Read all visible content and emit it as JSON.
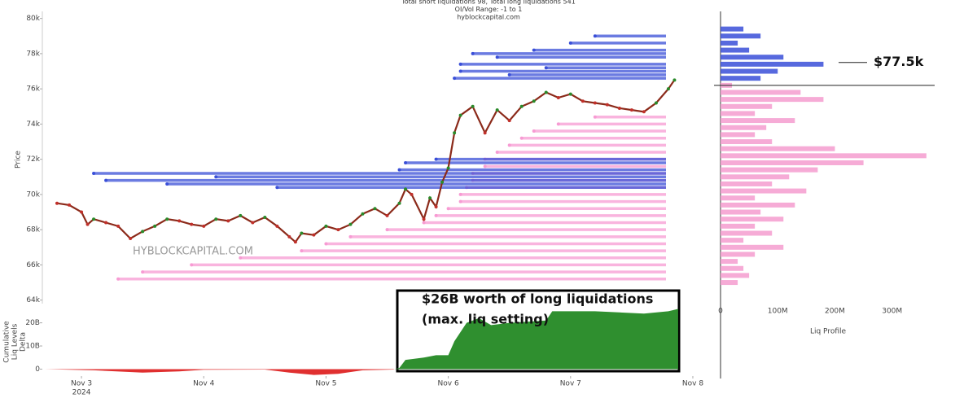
{
  "chart_data": [
    {
      "type": "line",
      "title_lines": [
        "Total short liquidations 98, Total long liquidations 541",
        "OI/Vol Range: -1 to 1",
        "hyblockcapital.com"
      ],
      "ylabel": "Price",
      "watermark": "HYBLOCKCAPITAL.COM",
      "color": "#8b2a1a",
      "x": [
        2.8,
        2.9,
        3.0,
        3.05,
        3.1,
        3.2,
        3.3,
        3.4,
        3.5,
        3.6,
        3.7,
        3.8,
        3.9,
        4.0,
        4.1,
        4.2,
        4.3,
        4.4,
        4.5,
        4.6,
        4.7,
        4.75,
        4.8,
        4.9,
        5.0,
        5.1,
        5.2,
        5.3,
        5.4,
        5.5,
        5.6,
        5.65,
        5.7,
        5.8,
        5.85,
        5.9,
        5.95,
        6.0,
        6.05,
        6.1,
        6.2,
        6.3,
        6.4,
        6.5,
        6.6,
        6.7,
        6.8,
        6.9,
        7.0,
        7.1,
        7.2,
        7.3,
        7.4,
        7.5,
        7.6,
        7.7,
        7.8,
        7.85
      ],
      "values": [
        69500,
        69400,
        69000,
        68300,
        68600,
        68400,
        68200,
        67500,
        67900,
        68200,
        68600,
        68500,
        68300,
        68200,
        68600,
        68500,
        68800,
        68400,
        68700,
        68200,
        67600,
        67300,
        67800,
        67700,
        68200,
        68000,
        68300,
        68900,
        69200,
        68800,
        69500,
        70300,
        70000,
        68600,
        69800,
        69300,
        70700,
        71500,
        73500,
        74500,
        75000,
        73500,
        74800,
        74200,
        75000,
        75300,
        75800,
        75500,
        75700,
        75300,
        75200,
        75100,
        74900,
        74800,
        74700,
        75200,
        76000,
        76500
      ],
      "xlim": [
        2.68,
        8.16
      ],
      "ylim": [
        63800,
        80400
      ],
      "yticks": [
        {
          "value": 64000,
          "label": "64k"
        },
        {
          "value": 66000,
          "label": "66k"
        },
        {
          "value": 68000,
          "label": "68k"
        },
        {
          "value": 70000,
          "label": "70k"
        },
        {
          "value": 72000,
          "label": "72k"
        },
        {
          "value": 74000,
          "label": "74k"
        },
        {
          "value": 76000,
          "label": "76k"
        },
        {
          "value": 78000,
          "label": "78k"
        },
        {
          "value": 80000,
          "label": "80k"
        }
      ],
      "short_levels": {
        "color": "#3a4fd8",
        "prices": [
          71200,
          70800,
          70600,
          71000,
          70400,
          71400,
          71800,
          72000,
          76600,
          77000,
          77400,
          77800,
          78200,
          78600,
          79000,
          76800,
          77200,
          78000
        ],
        "starts": [
          3.1,
          3.2,
          3.7,
          4.1,
          4.6,
          5.6,
          5.65,
          5.9,
          6.05,
          6.1,
          6.1,
          6.4,
          6.7,
          7.0,
          7.2,
          6.5,
          6.8,
          6.2
        ]
      },
      "long_levels": {
        "color": "#f79bd3",
        "prices": [
          65200,
          65600,
          66000,
          66400,
          66800,
          67200,
          67600,
          68000,
          68400,
          68800,
          69200,
          69600,
          70000,
          70400,
          70800,
          71200,
          71600,
          72000,
          72400,
          72800,
          73200,
          73600,
          74000,
          74400
        ],
        "starts": [
          3.3,
          3.5,
          3.9,
          4.3,
          4.8,
          5.0,
          5.2,
          5.5,
          5.8,
          5.9,
          6.0,
          6.1,
          6.1,
          6.15,
          6.2,
          6.2,
          6.3,
          6.3,
          6.4,
          6.5,
          6.6,
          6.7,
          6.9,
          7.2
        ]
      }
    },
    {
      "type": "area",
      "ylabel_lines": [
        "Cumulative",
        "Liq Levels",
        "Delta"
      ],
      "color_positive": "#2f8f2f",
      "color_negative": "#e03030",
      "x": [
        2.7,
        3.1,
        3.5,
        3.8,
        4.0,
        4.5,
        4.7,
        4.9,
        5.1,
        5.3,
        5.55,
        5.6,
        5.65,
        5.8,
        5.9,
        6.0,
        6.05,
        6.15,
        6.25,
        6.35,
        6.5,
        6.8,
        6.85,
        7.2,
        7.6,
        7.8,
        7.88
      ],
      "values": [
        0,
        -0.5,
        -1.5,
        -1,
        -0.3,
        -0.2,
        -1.5,
        -2.5,
        -2,
        -0.5,
        -0.2,
        0.5,
        4,
        5,
        6,
        6,
        12,
        20,
        22,
        19,
        20,
        21,
        25,
        25,
        24,
        25,
        26
      ],
      "xlim": [
        2.68,
        8.16
      ],
      "ylim": [
        -3,
        29
      ],
      "yticks": [
        0,
        {
          "value": 10,
          "label": "10B"
        },
        {
          "value": 20,
          "label": "20B"
        }
      ],
      "xticks": [
        {
          "value": 3,
          "label": "Nov 3"
        },
        {
          "value": 4,
          "label": "Nov 4"
        },
        {
          "value": 5,
          "label": "Nov 5"
        },
        {
          "value": 6,
          "label": "Nov 6"
        },
        {
          "value": 7,
          "label": "Nov 7"
        },
        {
          "value": 8,
          "label": "Nov 8"
        }
      ],
      "xtick_sublabel": "2024",
      "annotation_lines": [
        "$26B worth of long liquidations",
        "(max. liq setting)"
      ]
    },
    {
      "type": "barh",
      "xlabel": "Liq Profile",
      "color_above": "#3a4fd8",
      "color_below": "#f59ccf",
      "prices": [
        65000,
        65400,
        65800,
        66200,
        66600,
        67000,
        67400,
        67800,
        68200,
        68600,
        69000,
        69400,
        69800,
        70200,
        70600,
        71000,
        71400,
        71800,
        72200,
        72600,
        73000,
        73400,
        73800,
        74200,
        74600,
        75000,
        75400,
        75800,
        76200,
        76600,
        77000,
        77400,
        77800,
        78200,
        78600,
        79000,
        79400
      ],
      "values": [
        30,
        50,
        40,
        30,
        60,
        110,
        40,
        90,
        60,
        110,
        70,
        130,
        60,
        150,
        90,
        120,
        170,
        250,
        360,
        200,
        90,
        60,
        80,
        130,
        60,
        90,
        180,
        140,
        20,
        70,
        100,
        180,
        110,
        50,
        30,
        70,
        40
      ],
      "current_price": 76200,
      "annotation": {
        "text": "$77.5k",
        "price": 77500
      },
      "xlim": [
        0,
        420
      ],
      "ylim": [
        63800,
        80400
      ],
      "xticks": [
        0,
        {
          "value": 100,
          "label": "100M"
        },
        {
          "value": 200,
          "label": "200M"
        },
        {
          "value": 300,
          "label": "300M"
        }
      ]
    }
  ]
}
